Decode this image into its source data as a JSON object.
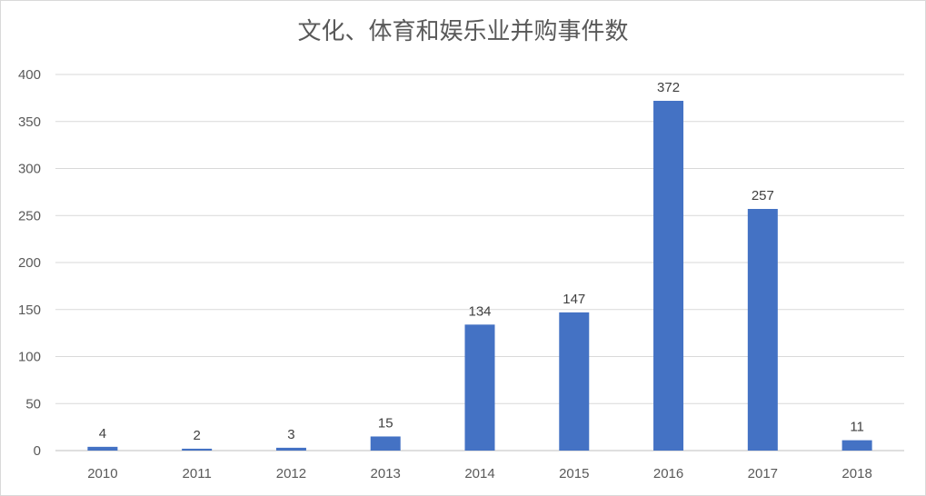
{
  "chart_data": {
    "type": "bar",
    "title": "文化、体育和娱乐业并购事件数",
    "categories": [
      "2010",
      "2011",
      "2012",
      "2013",
      "2014",
      "2015",
      "2016",
      "2017",
      "2018"
    ],
    "values": [
      4,
      2,
      3,
      15,
      134,
      147,
      372,
      257,
      11
    ],
    "data_labels": [
      "4",
      "2",
      "3",
      "15",
      "134",
      "147",
      "372",
      "257",
      "11"
    ],
    "ylim": [
      0,
      400
    ],
    "yticks": [
      "0",
      "50",
      "100",
      "150",
      "200",
      "250",
      "300",
      "350",
      "400"
    ],
    "grid": true,
    "legend": "none",
    "bar_color": "#4472C4",
    "grid_color": "#d9d9d9"
  }
}
